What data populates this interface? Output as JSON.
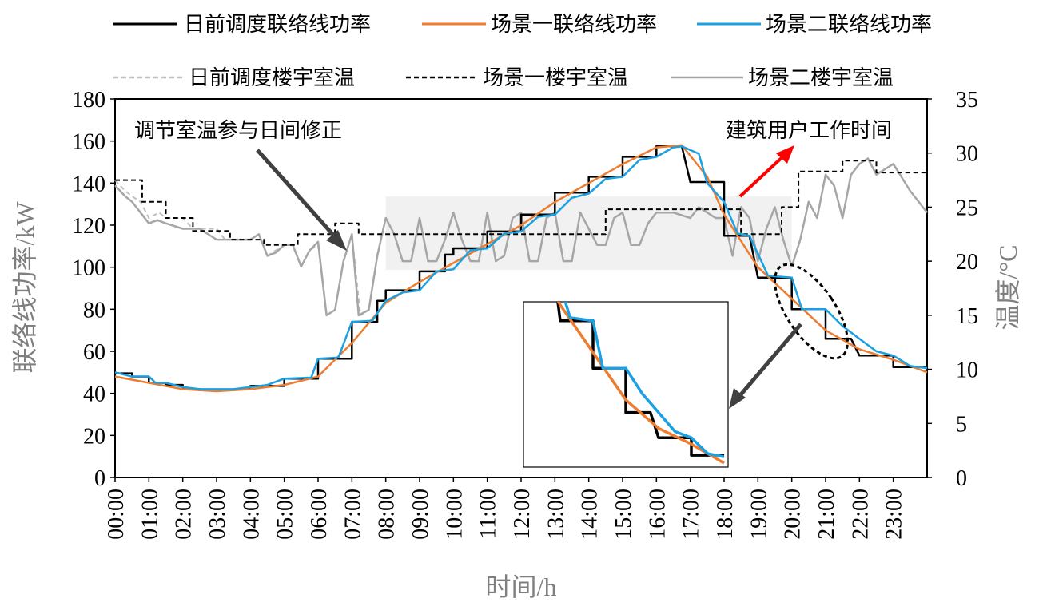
{
  "chart_data": {
    "type": "line",
    "legend": [
      {
        "key": "p_dayahead",
        "label": "日前调度联络线功率",
        "color": "#000000",
        "dash": "solid"
      },
      {
        "key": "p_s1",
        "label": "场景一联络线功率",
        "color": "#ED7D31",
        "dash": "solid"
      },
      {
        "key": "p_s2",
        "label": "场景二联络线功率",
        "color": "#1BA1E2",
        "dash": "solid"
      },
      {
        "key": "t_dayahead",
        "label": "日前调度楼宇室温",
        "color": "#BFBFBF",
        "dash": "dashed"
      },
      {
        "key": "t_s1",
        "label": "场景一楼宇室温",
        "color": "#000000",
        "dash": "dashed"
      },
      {
        "key": "t_s2",
        "label": "场景二楼宇室温",
        "color": "#A6A6A6",
        "dash": "solid"
      }
    ],
    "xlabel": "时间/h",
    "ylabel": "联络线功率/kW",
    "y2label": "温度/°C",
    "xlim": [
      0,
      24
    ],
    "ylim": [
      0,
      180
    ],
    "y2lim": [
      0,
      35
    ],
    "x_ticks": [
      "00:00",
      "01:00",
      "02:00",
      "03:00",
      "04:00",
      "05:00",
      "06:00",
      "07:00",
      "08:00",
      "09:00",
      "10:00",
      "11:00",
      "12:00",
      "13:00",
      "14:00",
      "15:00",
      "16:00",
      "17:00",
      "18:00",
      "19:00",
      "20:00",
      "21:00",
      "22:00",
      "23:00"
    ],
    "y_ticks": [
      0,
      20,
      40,
      60,
      80,
      100,
      120,
      140,
      160,
      180
    ],
    "y2_ticks": [
      0,
      5,
      10,
      15,
      20,
      25,
      30,
      35
    ],
    "grid": false,
    "annotations": [
      "调节室温参与日间修正",
      "建筑用户工作时间"
    ],
    "shaded_band": {
      "x": [
        8,
        20
      ],
      "y2": [
        19.2,
        26
      ]
    },
    "series": {
      "p_dayahead": [
        [
          0,
          49.5
        ],
        [
          0.5,
          49.5
        ],
        [
          0.5,
          48
        ],
        [
          1,
          48
        ],
        [
          1,
          45
        ],
        [
          1.5,
          45
        ],
        [
          1.5,
          44
        ],
        [
          2,
          44
        ],
        [
          2,
          42
        ],
        [
          2.5,
          42
        ],
        [
          2.5,
          41.5
        ],
        [
          3.5,
          41.5
        ],
        [
          3.5,
          42
        ],
        [
          4,
          42
        ],
        [
          4,
          43.5
        ],
        [
          5,
          43.5
        ],
        [
          5,
          47
        ],
        [
          6,
          47
        ],
        [
          6,
          56.5
        ],
        [
          7,
          56.5
        ],
        [
          7,
          74
        ],
        [
          7.75,
          74
        ],
        [
          7.75,
          84
        ],
        [
          8,
          84
        ],
        [
          8,
          89
        ],
        [
          9,
          89
        ],
        [
          9,
          98
        ],
        [
          9.75,
          98
        ],
        [
          9.75,
          106
        ],
        [
          10,
          106
        ],
        [
          10,
          109
        ],
        [
          11,
          109
        ],
        [
          11,
          117
        ],
        [
          12,
          117
        ],
        [
          12,
          125
        ],
        [
          13,
          125
        ],
        [
          13,
          135.5
        ],
        [
          14,
          135.5
        ],
        [
          14,
          143
        ],
        [
          15,
          143
        ],
        [
          15,
          152.5
        ],
        [
          16,
          152.5
        ],
        [
          16,
          157.5
        ],
        [
          16.75,
          157.5
        ],
        [
          17,
          140.5
        ],
        [
          18,
          140.5
        ],
        [
          18,
          115
        ],
        [
          18.75,
          115
        ],
        [
          19,
          95
        ],
        [
          20,
          95
        ],
        [
          20,
          80
        ],
        [
          21,
          80
        ],
        [
          21,
          66
        ],
        [
          21.75,
          66
        ],
        [
          22,
          58
        ],
        [
          23,
          58
        ],
        [
          23,
          52.5
        ],
        [
          24,
          52.5
        ]
      ],
      "p_s1": [
        [
          0,
          48
        ],
        [
          1,
          45
        ],
        [
          2,
          42
        ],
        [
          3,
          41
        ],
        [
          4,
          42
        ],
        [
          5,
          44
        ],
        [
          6,
          48
        ],
        [
          7,
          64
        ],
        [
          8,
          83
        ],
        [
          9,
          93
        ],
        [
          10,
          102
        ],
        [
          11,
          111
        ],
        [
          12,
          120
        ],
        [
          13,
          131
        ],
        [
          14,
          140
        ],
        [
          15,
          149
        ],
        [
          16,
          157
        ],
        [
          16.75,
          158
        ],
        [
          17.5,
          143
        ],
        [
          18,
          125
        ],
        [
          19,
          100
        ],
        [
          20,
          85
        ],
        [
          21,
          70
        ],
        [
          22,
          61
        ],
        [
          23,
          56
        ],
        [
          24,
          50
        ]
      ],
      "p_s2": [
        [
          0,
          50
        ],
        [
          0.5,
          48
        ],
        [
          1,
          48
        ],
        [
          1.2,
          45
        ],
        [
          1.5,
          45
        ],
        [
          2,
          43
        ],
        [
          2.5,
          42
        ],
        [
          3,
          42
        ],
        [
          3.5,
          42
        ],
        [
          4,
          43
        ],
        [
          4.5,
          44
        ],
        [
          5,
          47
        ],
        [
          5.8,
          47.5
        ],
        [
          6,
          56.5
        ],
        [
          6.6,
          57
        ],
        [
          7,
          74
        ],
        [
          7.6,
          74.5
        ],
        [
          8,
          84
        ],
        [
          8.5,
          88
        ],
        [
          9,
          89
        ],
        [
          9.5,
          98
        ],
        [
          10,
          99
        ],
        [
          10.5,
          108
        ],
        [
          11,
          109
        ],
        [
          11.5,
          116
        ],
        [
          12,
          117
        ],
        [
          12.5,
          124
        ],
        [
          13,
          125
        ],
        [
          13.5,
          133
        ],
        [
          14,
          135
        ],
        [
          14.5,
          142
        ],
        [
          15,
          143
        ],
        [
          15.5,
          151
        ],
        [
          16,
          152.5
        ],
        [
          16.5,
          157
        ],
        [
          16.75,
          157.5
        ],
        [
          17.25,
          154
        ],
        [
          17.5,
          140
        ],
        [
          18,
          131
        ],
        [
          18.4,
          116
        ],
        [
          18.75,
          115
        ],
        [
          19.3,
          96
        ],
        [
          20,
          95
        ],
        [
          20.3,
          80
        ],
        [
          21,
          80
        ],
        [
          21.5,
          72
        ],
        [
          22,
          66
        ],
        [
          22.5,
          60
        ],
        [
          23,
          58
        ],
        [
          23.5,
          53
        ],
        [
          24,
          52
        ]
      ],
      "t_dayahead": [
        [
          0,
          27.5
        ],
        [
          0.3,
          26.5
        ],
        [
          0.5,
          26
        ],
        [
          0.75,
          25.5
        ],
        [
          1,
          24
        ],
        [
          1.3,
          24.5
        ],
        [
          1.5,
          24
        ],
        [
          2,
          24
        ],
        [
          2.3,
          23
        ],
        [
          2.5,
          23
        ],
        [
          3,
          23
        ],
        [
          3.25,
          22
        ],
        [
          3.5,
          22
        ],
        [
          4,
          22
        ],
        [
          4.25,
          22.5
        ],
        [
          4.5,
          20.5
        ],
        [
          4.75,
          21
        ],
        [
          5,
          21.5
        ],
        [
          5.25,
          21.5
        ],
        [
          5.5,
          19.5
        ],
        [
          5.75,
          21
        ],
        [
          6,
          21.5
        ],
        [
          6.25,
          15
        ],
        [
          6.5,
          15.5
        ],
        [
          6.75,
          20
        ],
        [
          7,
          22.5
        ],
        [
          7.25,
          15
        ],
        [
          7.5,
          15.5
        ],
        [
          7.75,
          20.5
        ],
        [
          8,
          24
        ],
        [
          8.25,
          22.5
        ],
        [
          8.5,
          20
        ],
        [
          8.75,
          20
        ],
        [
          9,
          24
        ],
        [
          9.25,
          20
        ],
        [
          9.5,
          20
        ],
        [
          9.75,
          22
        ],
        [
          10,
          24.5
        ],
        [
          10.25,
          22
        ],
        [
          10.5,
          20
        ],
        [
          10.75,
          20
        ],
        [
          11,
          24.5
        ],
        [
          11.25,
          20
        ],
        [
          11.5,
          20.5
        ],
        [
          11.75,
          24
        ],
        [
          12,
          24.5
        ],
        [
          12.25,
          20
        ],
        [
          12.5,
          20
        ],
        [
          12.75,
          24
        ],
        [
          13,
          24.5
        ],
        [
          13.25,
          20
        ],
        [
          13.5,
          20
        ],
        [
          13.75,
          24.5
        ],
        [
          14,
          23
        ],
        [
          14.25,
          21.5
        ],
        [
          14.5,
          21.5
        ],
        [
          14.75,
          24
        ],
        [
          15,
          24.5
        ],
        [
          15.25,
          21.5
        ],
        [
          15.5,
          21.5
        ],
        [
          15.75,
          23.5
        ],
        [
          16,
          24.5
        ],
        [
          16.5,
          24.5
        ],
        [
          17,
          24
        ],
        [
          17.25,
          25
        ],
        [
          17.5,
          24.5
        ],
        [
          17.75,
          24
        ],
        [
          18,
          24
        ],
        [
          18.25,
          20.5
        ],
        [
          18.5,
          25
        ],
        [
          18.75,
          24
        ],
        [
          19,
          20
        ],
        [
          19.25,
          23
        ],
        [
          19.5,
          25
        ],
        [
          19.75,
          22
        ],
        [
          20,
          19.5
        ],
        [
          20.25,
          22
        ],
        [
          20.5,
          25.5
        ],
        [
          20.75,
          24
        ],
        [
          21,
          28
        ],
        [
          21.25,
          27
        ],
        [
          21.5,
          24
        ],
        [
          21.75,
          28
        ],
        [
          22,
          29
        ],
        [
          22.25,
          29.5
        ],
        [
          22.5,
          28
        ],
        [
          22.75,
          28.5
        ],
        [
          23,
          29
        ],
        [
          23.5,
          26.5
        ],
        [
          24,
          24.5
        ]
      ],
      "t_s1": [
        [
          0,
          27.5
        ],
        [
          0.8,
          27.5
        ],
        [
          0.8,
          25.5
        ],
        [
          1.5,
          25.5
        ],
        [
          1.5,
          24
        ],
        [
          2.3,
          24
        ],
        [
          2.3,
          22.8
        ],
        [
          3.4,
          22.8
        ],
        [
          3.4,
          22
        ],
        [
          4.4,
          22
        ],
        [
          4.4,
          21.5
        ],
        [
          5.4,
          21.5
        ],
        [
          5.4,
          22.5
        ],
        [
          6.5,
          22.5
        ],
        [
          6.5,
          23.5
        ],
        [
          7.2,
          23.5
        ],
        [
          7.2,
          22.5
        ],
        [
          14.5,
          22.5
        ],
        [
          14.5,
          24.8
        ],
        [
          18.5,
          24.8
        ],
        [
          18.5,
          22.5
        ],
        [
          19.7,
          22.5
        ],
        [
          19.7,
          25
        ],
        [
          20.2,
          25
        ],
        [
          20.2,
          28.3
        ],
        [
          21.5,
          28.3
        ],
        [
          21.5,
          29.3
        ],
        [
          22.5,
          29.3
        ],
        [
          22.5,
          28.2
        ],
        [
          24,
          28.2
        ]
      ],
      "t_s2": [
        [
          0,
          27
        ],
        [
          0.3,
          26
        ],
        [
          0.5,
          25.5
        ],
        [
          0.75,
          24.5
        ],
        [
          1,
          23.5
        ],
        [
          1.25,
          23.8
        ],
        [
          1.5,
          23.5
        ],
        [
          2,
          23
        ],
        [
          2.5,
          23
        ],
        [
          3,
          22
        ],
        [
          3.5,
          22
        ],
        [
          4,
          22
        ],
        [
          4.25,
          22.5
        ],
        [
          4.5,
          20.5
        ],
        [
          4.75,
          20.8
        ],
        [
          5,
          21.5
        ],
        [
          5.25,
          21.5
        ],
        [
          5.5,
          19.5
        ],
        [
          5.75,
          21
        ],
        [
          6,
          21.8
        ],
        [
          6.25,
          15
        ],
        [
          6.5,
          15.5
        ],
        [
          6.75,
          20
        ],
        [
          7,
          22.5
        ],
        [
          7.2,
          15
        ],
        [
          7.5,
          15.5
        ],
        [
          7.75,
          20.5
        ],
        [
          8,
          24
        ],
        [
          8.25,
          22.5
        ],
        [
          8.5,
          20
        ],
        [
          8.75,
          20
        ],
        [
          9,
          24
        ],
        [
          9.25,
          20
        ],
        [
          9.5,
          20
        ],
        [
          9.75,
          22
        ],
        [
          10,
          24.5
        ],
        [
          10.25,
          22
        ],
        [
          10.5,
          20
        ],
        [
          10.75,
          20
        ],
        [
          11,
          24.5
        ],
        [
          11.25,
          20
        ],
        [
          11.5,
          20.5
        ],
        [
          11.75,
          24
        ],
        [
          12,
          24.5
        ],
        [
          12.25,
          20
        ],
        [
          12.5,
          20
        ],
        [
          12.75,
          24
        ],
        [
          13,
          24.5
        ],
        [
          13.25,
          20
        ],
        [
          13.5,
          20
        ],
        [
          13.75,
          24.5
        ],
        [
          14,
          23
        ],
        [
          14.25,
          21.5
        ],
        [
          14.5,
          21.5
        ],
        [
          14.75,
          24
        ],
        [
          15,
          24.5
        ],
        [
          15.25,
          21.5
        ],
        [
          15.5,
          21.5
        ],
        [
          15.75,
          23.5
        ],
        [
          16,
          24.5
        ],
        [
          16.5,
          24.5
        ],
        [
          17,
          24
        ],
        [
          17.25,
          25
        ],
        [
          17.5,
          24.5
        ],
        [
          17.75,
          24
        ],
        [
          18,
          24
        ],
        [
          18.25,
          20.5
        ],
        [
          18.5,
          25
        ],
        [
          18.75,
          24
        ],
        [
          19,
          20
        ],
        [
          19.25,
          23
        ],
        [
          19.5,
          25
        ],
        [
          19.75,
          22
        ],
        [
          20,
          19.5
        ],
        [
          20.25,
          22
        ],
        [
          20.5,
          25.5
        ],
        [
          20.75,
          24
        ],
        [
          21,
          28
        ],
        [
          21.25,
          27
        ],
        [
          21.5,
          24
        ],
        [
          21.75,
          28
        ],
        [
          22,
          29
        ],
        [
          22.25,
          29.5
        ],
        [
          22.5,
          28
        ],
        [
          22.75,
          28.5
        ],
        [
          23,
          29
        ],
        [
          23.5,
          26.5
        ],
        [
          24,
          24.5
        ]
      ]
    },
    "inset": {
      "xlim": [
        18,
        24
      ],
      "ylim": [
        50,
        100
      ]
    }
  }
}
